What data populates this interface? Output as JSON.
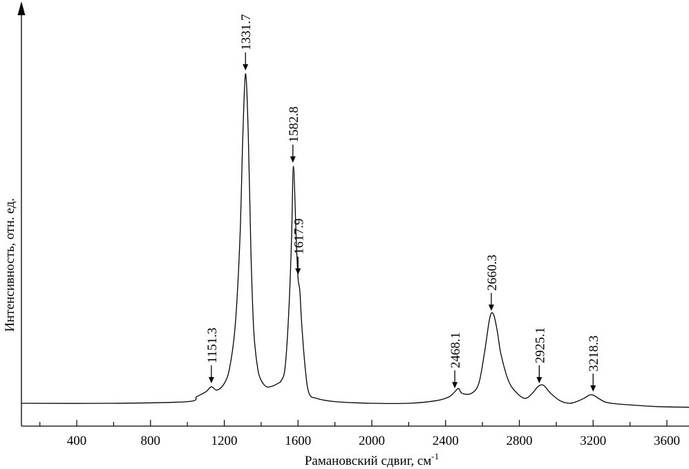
{
  "chart_data": {
    "type": "line",
    "title": "",
    "xlabel": "Рамановский сдвиг, см",
    "xlabel_superscript": "-1",
    "ylabel": "Интенсивность, отн. ед.",
    "xlim": [
      100,
      3720
    ],
    "ylim": [
      0,
      1.18
    ],
    "x_ticks": [
      400,
      800,
      1200,
      1600,
      2000,
      2400,
      2800,
      3200,
      3600
    ],
    "x_tick_labels": [
      "400",
      "800",
      "1200",
      "1600",
      "2000",
      "2400",
      "2800",
      "3200",
      "3600"
    ],
    "x_minor_step": 200,
    "grid": false,
    "legend": "none",
    "series": [
      {
        "x": [
          100,
          600,
          1000,
          1050,
          1100,
          1130,
          1160,
          1200,
          1230,
          1260,
          1285,
          1300,
          1315,
          1330,
          1345,
          1360,
          1380,
          1400,
          1430,
          1460,
          1490,
          1510,
          1530,
          1550,
          1565,
          1575,
          1590,
          1600,
          1610,
          1620,
          1640,
          1660,
          1700,
          1800,
          2000,
          2200,
          2350,
          2420,
          2450,
          2470,
          2490,
          2540,
          2580,
          2610,
          2640,
          2660,
          2680,
          2700,
          2740,
          2780,
          2830,
          2870,
          2900,
          2930,
          2970,
          3020,
          3070,
          3110,
          3150,
          3180,
          3200,
          3230,
          3260,
          3300,
          3400,
          3550,
          3720
        ],
        "y": [
          0.0,
          0.0,
          0.005,
          0.02,
          0.035,
          0.05,
          0.04,
          0.06,
          0.11,
          0.24,
          0.5,
          0.8,
          1.0,
          0.82,
          0.45,
          0.22,
          0.11,
          0.07,
          0.05,
          0.052,
          0.06,
          0.07,
          0.11,
          0.28,
          0.5,
          0.72,
          0.5,
          0.38,
          0.34,
          0.24,
          0.1,
          0.03,
          0.015,
          0.005,
          0.0,
          0.0,
          0.008,
          0.02,
          0.035,
          0.045,
          0.03,
          0.03,
          0.06,
          0.15,
          0.26,
          0.27,
          0.22,
          0.15,
          0.07,
          0.035,
          0.015,
          0.03,
          0.05,
          0.055,
          0.03,
          0.008,
          0.0,
          0.005,
          0.015,
          0.025,
          0.025,
          0.015,
          0.005,
          0.0,
          -0.005,
          -0.01,
          -0.012
        ]
      }
    ],
    "annotations": [
      {
        "label": "1151.3",
        "x": 1130,
        "y": 0.05
      },
      {
        "label": "1331.7",
        "x": 1315,
        "y": 1.0
      },
      {
        "label": "1582.8",
        "x": 1572,
        "y": 0.72
      },
      {
        "label": "1617.9",
        "x": 1600,
        "y": 0.38
      },
      {
        "label": "2468.1",
        "x": 2450,
        "y": 0.035
      },
      {
        "label": "2660.3",
        "x": 2648,
        "y": 0.27
      },
      {
        "label": "2925.1",
        "x": 2908,
        "y": 0.05
      },
      {
        "label": "3218.3",
        "x": 3200,
        "y": 0.025
      }
    ]
  }
}
